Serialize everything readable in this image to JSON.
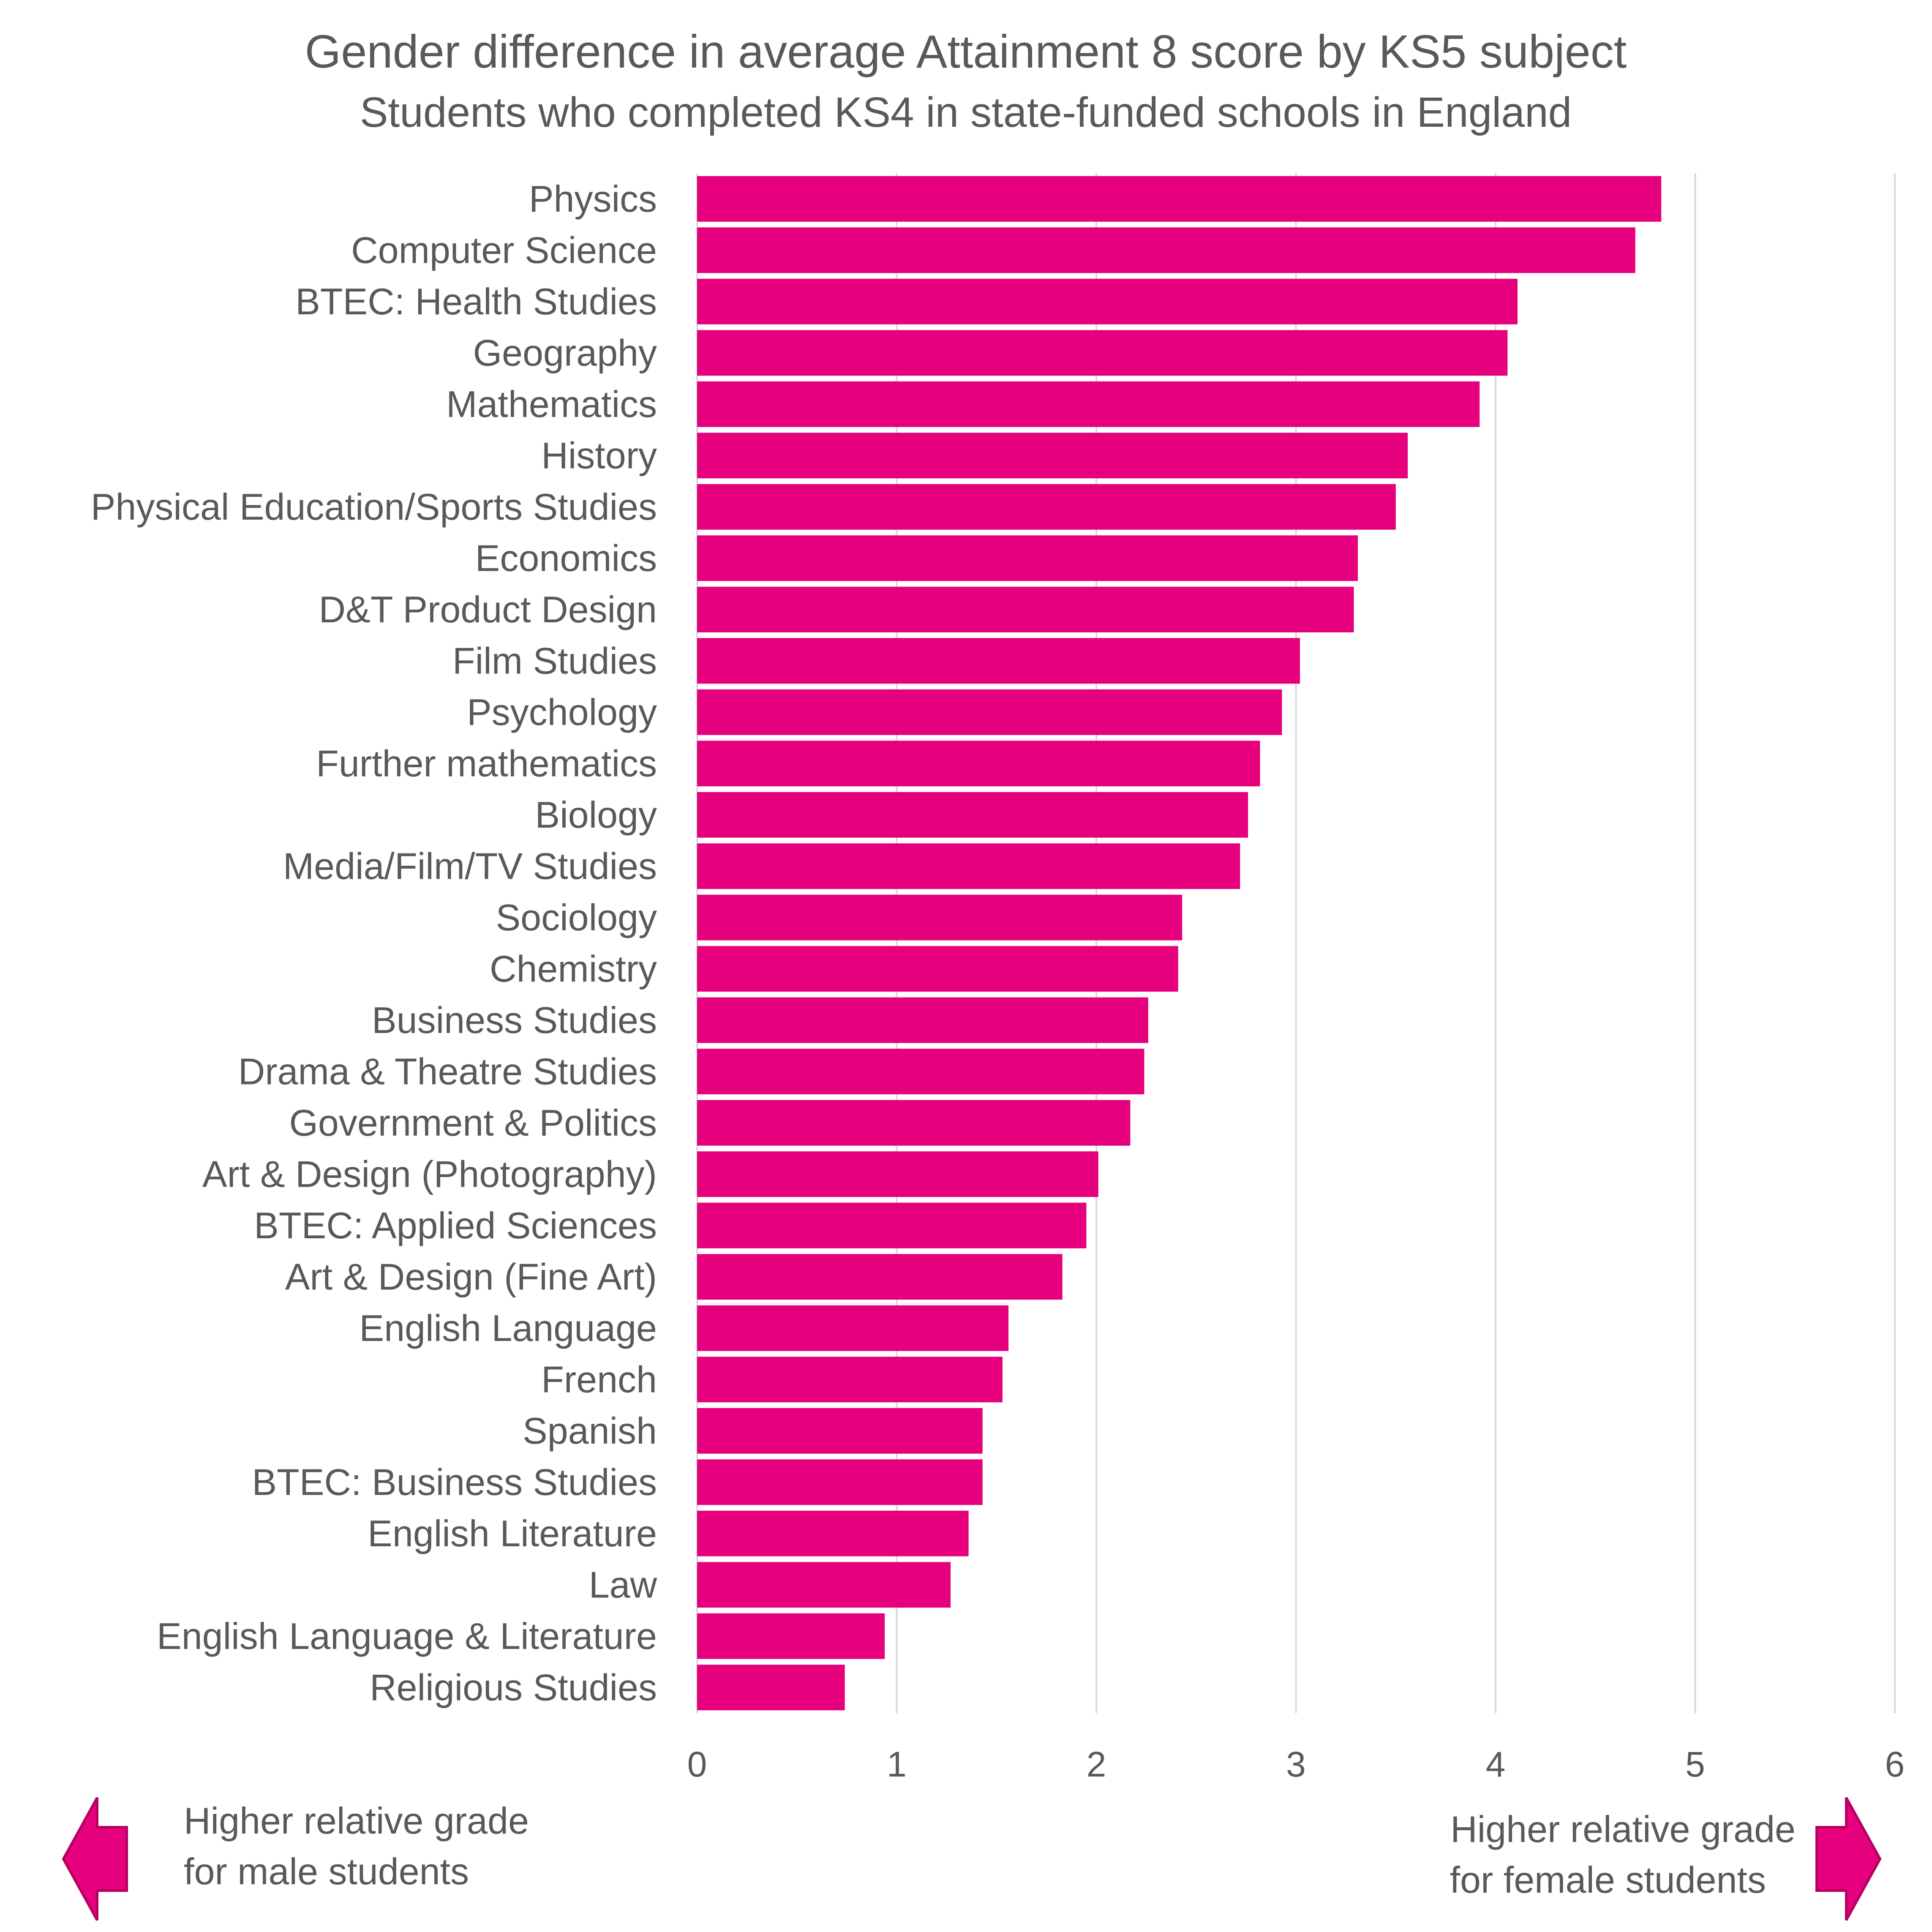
{
  "chart_data": {
    "type": "bar",
    "orientation": "horizontal",
    "title": "Gender difference in average Attainment 8 score by KS5 subject",
    "subtitle": "Students who completed KS4 in state-funded schools in England",
    "categories": [
      "Physics",
      "Computer Science",
      "BTEC: Health Studies",
      "Geography",
      "Mathematics",
      "History",
      "Physical Education/Sports Studies",
      "Economics",
      "D&T Product Design",
      "Film Studies",
      "Psychology",
      "Further mathematics",
      "Biology",
      "Media/Film/TV Studies",
      "Sociology",
      "Chemistry",
      "Business Studies",
      "Drama & Theatre Studies",
      "Government & Politics",
      "Art & Design (Photography)",
      "BTEC: Applied Sciences",
      "Art & Design (Fine Art)",
      "English Language",
      "French",
      "Spanish",
      "BTEC: Business Studies",
      "English Literature",
      "Law",
      "English Language & Literature",
      "Religious Studies"
    ],
    "values": [
      4.83,
      4.7,
      4.11,
      4.06,
      3.92,
      3.56,
      3.5,
      3.31,
      3.29,
      3.02,
      2.93,
      2.82,
      2.76,
      2.72,
      2.43,
      2.41,
      2.26,
      2.24,
      2.17,
      2.01,
      1.95,
      1.83,
      1.56,
      1.53,
      1.43,
      1.43,
      1.36,
      1.27,
      0.94,
      0.74
    ],
    "xlim": [
      0,
      6
    ],
    "xticks": [
      "0",
      "1",
      "2",
      "3",
      "4",
      "5",
      "6"
    ],
    "grid": true,
    "legend": "none",
    "bar_color": "#e6007e",
    "annotations": {
      "left": [
        "Higher relative grade",
        "for male students"
      ],
      "right": [
        "Higher relative grade",
        "for female students"
      ]
    },
    "annotation_icons": [
      "arrow-left-icon",
      "arrow-right-icon"
    ]
  }
}
